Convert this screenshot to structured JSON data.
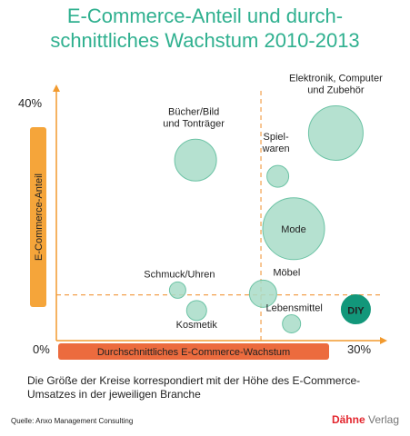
{
  "title": {
    "line1": "E-Commerce-Anteil und durch-",
    "line2": "schnittliches Wachstum 2010-2013"
  },
  "colors": {
    "title": "#2fb08f",
    "axis": "#f29a2e",
    "axis_box": "#f5a53a",
    "axis_box_bottom": "#ec6b3e",
    "bubble_fill": "#a8dcc8",
    "bubble_stroke": "#6cc3a5",
    "highlight_fill": "#12977a",
    "dashed": "#f2a04d",
    "brand_red": "#e3262e",
    "brand_grey": "#777777"
  },
  "chart_data": {
    "type": "scatter",
    "xlabel": "Durchschnittliches E-Commerce-Wachstum",
    "ylabel": "E-Commerce-Anteil",
    "x_ticks": [
      "0%",
      "30%"
    ],
    "y_ticks": [
      "40%"
    ],
    "xlim": [
      0,
      30
    ],
    "ylim": [
      0,
      40
    ],
    "bubble_size_meaning": "E-Commerce-Umsatz",
    "points": [
      {
        "name": "Elektronik, Computer und Zubehör",
        "label_lines": [
          "Elektronik, Computer",
          "und Zubehör"
        ],
        "x": 26.5,
        "y": 34.5,
        "r": 30,
        "highlight": false
      },
      {
        "name": "Bücher/Bild und Tonträger",
        "label_lines": [
          "Bücher/Bild",
          "und Tonträger"
        ],
        "x": 13.2,
        "y": 30.0,
        "r": 23,
        "highlight": false
      },
      {
        "name": "Spielwaren",
        "label_lines": [
          "Spiel-",
          "waren"
        ],
        "x": 21.0,
        "y": 27.3,
        "r": 12,
        "highlight": false
      },
      {
        "name": "Mode",
        "label_lines": [
          "Mode"
        ],
        "x": 22.5,
        "y": 18.6,
        "r": 34,
        "highlight": false
      },
      {
        "name": "Schmuck/Uhren",
        "label_lines": [
          "Schmuck/Uhren"
        ],
        "x": 11.5,
        "y": 8.4,
        "r": 9,
        "highlight": false
      },
      {
        "name": "Möbel",
        "label_lines": [
          "Möbel"
        ],
        "x": 19.6,
        "y": 7.8,
        "r": 15,
        "highlight": false
      },
      {
        "name": "Kosmetik",
        "label_lines": [
          "Kosmetik"
        ],
        "x": 13.3,
        "y": 5.0,
        "r": 11,
        "highlight": false
      },
      {
        "name": "Lebensmittel",
        "label_lines": [
          "Lebensmittel"
        ],
        "x": 22.3,
        "y": 2.8,
        "r": 10,
        "highlight": false
      },
      {
        "name": "DIY",
        "label_lines": [
          "DIY"
        ],
        "x": 28.4,
        "y": 5.2,
        "r": 16,
        "highlight": true
      }
    ],
    "reference_lines": {
      "x": 19.4,
      "y": 7.6
    }
  },
  "footnote": "Die Größe der Kreise korrespondiert mit der Höhe des E-Commerce-Umsatzes in der jeweiligen Branche",
  "source": "Quelle: Anxo Management Consulting",
  "brand": {
    "part1": "Dähne",
    "part2": " Verlag"
  }
}
